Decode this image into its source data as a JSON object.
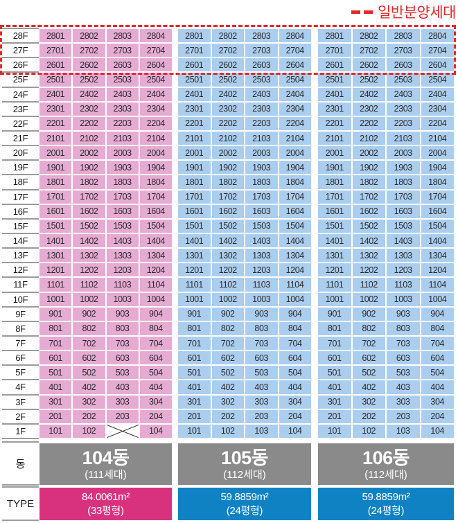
{
  "legend": {
    "label": "일반분양세대",
    "dash_color": "#e0282d"
  },
  "colors": {
    "highlight_dash_red": "#e0282d",
    "pink_unit_cell": "#e5abd3",
    "blue_unit_cell": "#abcdee",
    "dong_bar_gray": "#8a8a8a",
    "type_bar_magenta": "#d8327f",
    "type_bar_blue": "#0f82c4",
    "divider_gray": "#9b9b9b"
  },
  "row_headers": {
    "dong": "동",
    "type": "TYPE"
  },
  "floor_labels": [
    "28F",
    "27F",
    "26F",
    "25F",
    "24F",
    "23F",
    "22F",
    "21F",
    "20F",
    "19F",
    "18F",
    "17F",
    "16F",
    "15F",
    "14F",
    "13F",
    "12F",
    "11F",
    "10F",
    "9F",
    "8F",
    "7F",
    "6F",
    "5F",
    "4F",
    "3F",
    "2F",
    "1F"
  ],
  "buildings": [
    {
      "name": "104동",
      "households": "(111세대)",
      "type_area": "84.0061m²",
      "type_pyeong": "(33평형)",
      "cell_color": "#e5abd3",
      "type_color": "#d8327f",
      "rows": [
        [
          "2801",
          "2802",
          "2803",
          "2804"
        ],
        [
          "2701",
          "2702",
          "2703",
          "2704"
        ],
        [
          "2601",
          "2602",
          "2603",
          "2604"
        ],
        [
          "2501",
          "2502",
          "2503",
          "2504"
        ],
        [
          "2401",
          "2402",
          "2403",
          "2404"
        ],
        [
          "2301",
          "2302",
          "2303",
          "2304"
        ],
        [
          "2201",
          "2202",
          "2203",
          "2204"
        ],
        [
          "2101",
          "2102",
          "2103",
          "2104"
        ],
        [
          "2001",
          "2002",
          "2003",
          "2004"
        ],
        [
          "1901",
          "1902",
          "1903",
          "1904"
        ],
        [
          "1801",
          "1802",
          "1803",
          "1804"
        ],
        [
          "1701",
          "1702",
          "1703",
          "1704"
        ],
        [
          "1601",
          "1602",
          "1603",
          "1604"
        ],
        [
          "1501",
          "1502",
          "1503",
          "1504"
        ],
        [
          "1401",
          "1402",
          "1403",
          "1404"
        ],
        [
          "1301",
          "1302",
          "1303",
          "1304"
        ],
        [
          "1201",
          "1202",
          "1203",
          "1204"
        ],
        [
          "1101",
          "1102",
          "1103",
          "1104"
        ],
        [
          "1001",
          "1002",
          "1003",
          "1004"
        ],
        [
          "901",
          "902",
          "903",
          "904"
        ],
        [
          "801",
          "802",
          "803",
          "804"
        ],
        [
          "701",
          "702",
          "703",
          "704"
        ],
        [
          "601",
          "602",
          "603",
          "604"
        ],
        [
          "501",
          "502",
          "503",
          "504"
        ],
        [
          "401",
          "402",
          "403",
          "404"
        ],
        [
          "301",
          "302",
          "303",
          "304"
        ],
        [
          "201",
          "202",
          "203",
          "204"
        ],
        [
          "101",
          "102",
          "X",
          "104"
        ]
      ]
    },
    {
      "name": "105동",
      "households": "(112세대)",
      "type_area": "59.8859m²",
      "type_pyeong": "(24평형)",
      "cell_color": "#abcdee",
      "type_color": "#0f82c4",
      "rows": [
        [
          "2801",
          "2802",
          "2803",
          "2804"
        ],
        [
          "2701",
          "2702",
          "2703",
          "2704"
        ],
        [
          "2601",
          "2602",
          "2603",
          "2604"
        ],
        [
          "2501",
          "2502",
          "2503",
          "2504"
        ],
        [
          "2401",
          "2402",
          "2403",
          "2404"
        ],
        [
          "2301",
          "2302",
          "2303",
          "2304"
        ],
        [
          "2201",
          "2202",
          "2203",
          "2204"
        ],
        [
          "2101",
          "2102",
          "2103",
          "2104"
        ],
        [
          "2001",
          "2002",
          "2003",
          "2004"
        ],
        [
          "1901",
          "1902",
          "1903",
          "1904"
        ],
        [
          "1801",
          "1802",
          "1803",
          "1804"
        ],
        [
          "1701",
          "1702",
          "1703",
          "1704"
        ],
        [
          "1601",
          "1602",
          "1603",
          "1604"
        ],
        [
          "1501",
          "1502",
          "1503",
          "1504"
        ],
        [
          "1401",
          "1402",
          "1403",
          "1404"
        ],
        [
          "1301",
          "1302",
          "1303",
          "1304"
        ],
        [
          "1201",
          "1202",
          "1203",
          "1204"
        ],
        [
          "1101",
          "1102",
          "1103",
          "1104"
        ],
        [
          "1001",
          "1002",
          "1003",
          "1004"
        ],
        [
          "901",
          "902",
          "903",
          "904"
        ],
        [
          "801",
          "802",
          "803",
          "804"
        ],
        [
          "701",
          "702",
          "703",
          "704"
        ],
        [
          "601",
          "602",
          "603",
          "604"
        ],
        [
          "501",
          "502",
          "503",
          "504"
        ],
        [
          "401",
          "402",
          "403",
          "404"
        ],
        [
          "301",
          "302",
          "303",
          "304"
        ],
        [
          "201",
          "202",
          "203",
          "204"
        ],
        [
          "101",
          "102",
          "103",
          "104"
        ]
      ]
    },
    {
      "name": "106동",
      "households": "(112세대)",
      "type_area": "59.8859m²",
      "type_pyeong": "(24평형)",
      "cell_color": "#abcdee",
      "type_color": "#0f82c4",
      "rows": [
        [
          "2801",
          "2802",
          "2803",
          "2804"
        ],
        [
          "2701",
          "2702",
          "2703",
          "2704"
        ],
        [
          "2601",
          "2602",
          "2603",
          "2604"
        ],
        [
          "2501",
          "2502",
          "2503",
          "2504"
        ],
        [
          "2401",
          "2402",
          "2403",
          "2404"
        ],
        [
          "2301",
          "2302",
          "2303",
          "2304"
        ],
        [
          "2201",
          "2202",
          "2203",
          "2204"
        ],
        [
          "2101",
          "2102",
          "2103",
          "2104"
        ],
        [
          "2001",
          "2002",
          "2003",
          "2004"
        ],
        [
          "1901",
          "1902",
          "1903",
          "1904"
        ],
        [
          "1801",
          "1802",
          "1803",
          "1804"
        ],
        [
          "1701",
          "1702",
          "1703",
          "1704"
        ],
        [
          "1601",
          "1602",
          "1603",
          "1604"
        ],
        [
          "1501",
          "1502",
          "1503",
          "1504"
        ],
        [
          "1401",
          "1402",
          "1403",
          "1404"
        ],
        [
          "1301",
          "1302",
          "1303",
          "1304"
        ],
        [
          "1201",
          "1202",
          "1203",
          "1204"
        ],
        [
          "1101",
          "1102",
          "1103",
          "1104"
        ],
        [
          "1001",
          "1002",
          "1003",
          "1004"
        ],
        [
          "901",
          "902",
          "903",
          "904"
        ],
        [
          "801",
          "802",
          "803",
          "804"
        ],
        [
          "701",
          "702",
          "703",
          "704"
        ],
        [
          "601",
          "602",
          "603",
          "604"
        ],
        [
          "501",
          "502",
          "503",
          "504"
        ],
        [
          "401",
          "402",
          "403",
          "404"
        ],
        [
          "301",
          "302",
          "303",
          "304"
        ],
        [
          "201",
          "202",
          "203",
          "204"
        ],
        [
          "101",
          "102",
          "103",
          "104"
        ]
      ]
    }
  ],
  "chart_data": {
    "type": "table",
    "title": "아파트 동호수 배치표 (stacking plan)",
    "legend": [
      {
        "label": "일반분양세대",
        "style": "red dashed outline",
        "applies_to_floors": [
          "26F",
          "27F",
          "28F"
        ]
      }
    ],
    "row_categories": [
      "28F",
      "27F",
      "26F",
      "25F",
      "24F",
      "23F",
      "22F",
      "21F",
      "20F",
      "19F",
      "18F",
      "17F",
      "16F",
      "15F",
      "14F",
      "13F",
      "12F",
      "11F",
      "10F",
      "9F",
      "8F",
      "7F",
      "6F",
      "5F",
      "4F",
      "3F",
      "2F",
      "1F"
    ],
    "columns": [
      {
        "building": "104동",
        "households": 111,
        "area_m2": 84.0061,
        "pyeong": "33평형",
        "units_per_floor": 4,
        "missing_units": [
          "103"
        ]
      },
      {
        "building": "105동",
        "households": 112,
        "area_m2": 59.8859,
        "pyeong": "24평형",
        "units_per_floor": 4,
        "missing_units": []
      },
      {
        "building": "106동",
        "households": 112,
        "area_m2": 59.8859,
        "pyeong": "24평형",
        "units_per_floor": 4,
        "missing_units": []
      }
    ]
  }
}
